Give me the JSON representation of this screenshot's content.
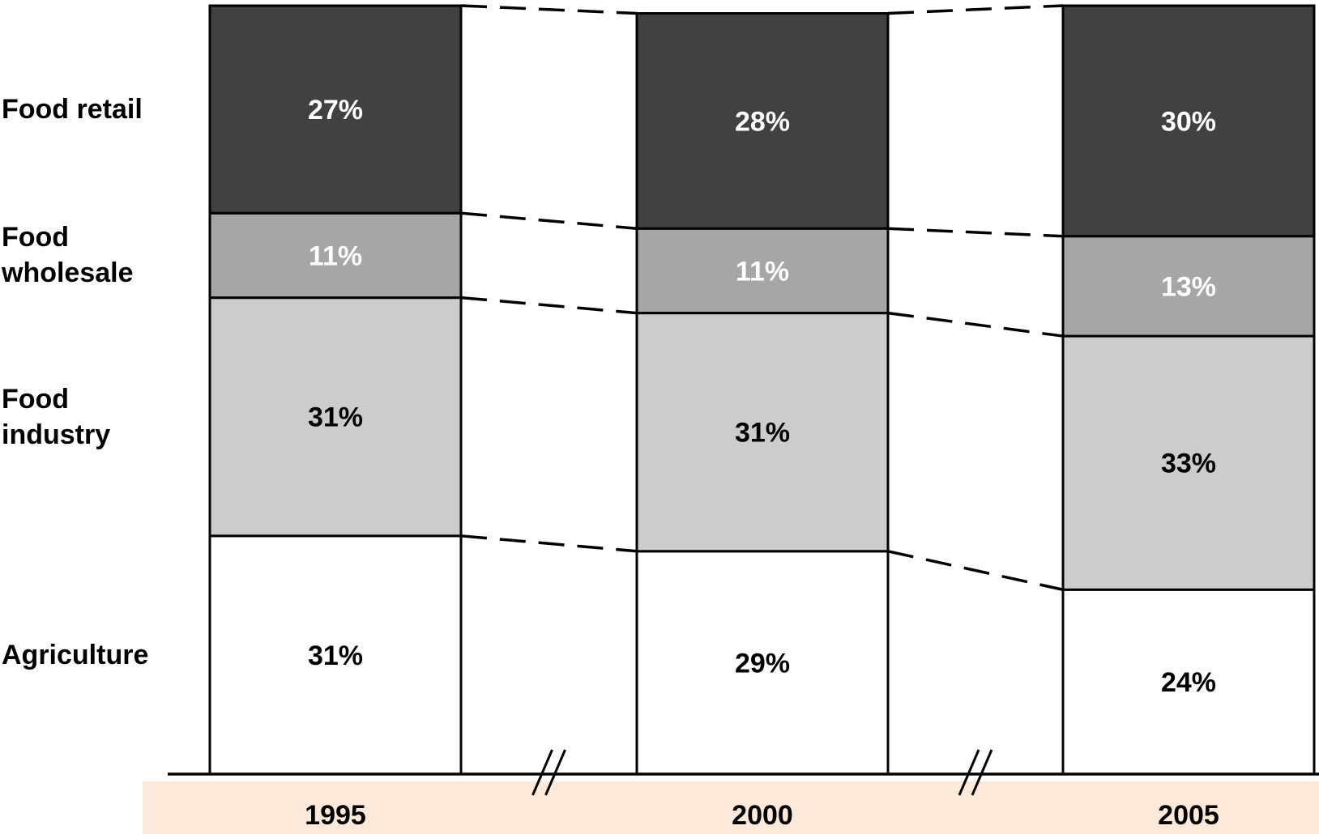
{
  "chart_data": {
    "type": "bar",
    "stacked": true,
    "normalized": true,
    "categories": [
      "1995",
      "2000",
      "2005"
    ],
    "series": [
      {
        "name": "Agriculture",
        "values": [
          31,
          29,
          24
        ],
        "labels": [
          "31%",
          "29%",
          "24%"
        ],
        "color": "#ffffff",
        "text_color": "#000000"
      },
      {
        "name": "Food industry",
        "values": [
          31,
          31,
          33
        ],
        "labels": [
          "31%",
          "31%",
          "33%"
        ],
        "color": "#cccccc",
        "text_color": "#000000"
      },
      {
        "name": "Food wholesale",
        "values": [
          11,
          11,
          13
        ],
        "labels": [
          "11%",
          "11%",
          "13%"
        ],
        "color": "#a6a6a6",
        "text_color": "#ffffff"
      },
      {
        "name": "Food retail",
        "values": [
          27,
          28,
          30
        ],
        "labels": [
          "27%",
          "28%",
          "30%"
        ],
        "color": "#414141",
        "text_color": "#ffffff"
      }
    ],
    "row_labels": [
      {
        "series": "Food retail",
        "lines": [
          "Food retail"
        ]
      },
      {
        "series": "Food wholesale",
        "lines": [
          "Food",
          "wholesale"
        ]
      },
      {
        "series": "Food industry",
        "lines": [
          "Food",
          "industry"
        ]
      },
      {
        "series": "Agriculture",
        "lines": [
          "Agriculture"
        ]
      }
    ],
    "axis_break_marks": true,
    "year_band_color": "#fde9d9",
    "ylim": [
      0,
      100
    ],
    "title": "",
    "xlabel": "",
    "ylabel": "",
    "grid": false
  }
}
